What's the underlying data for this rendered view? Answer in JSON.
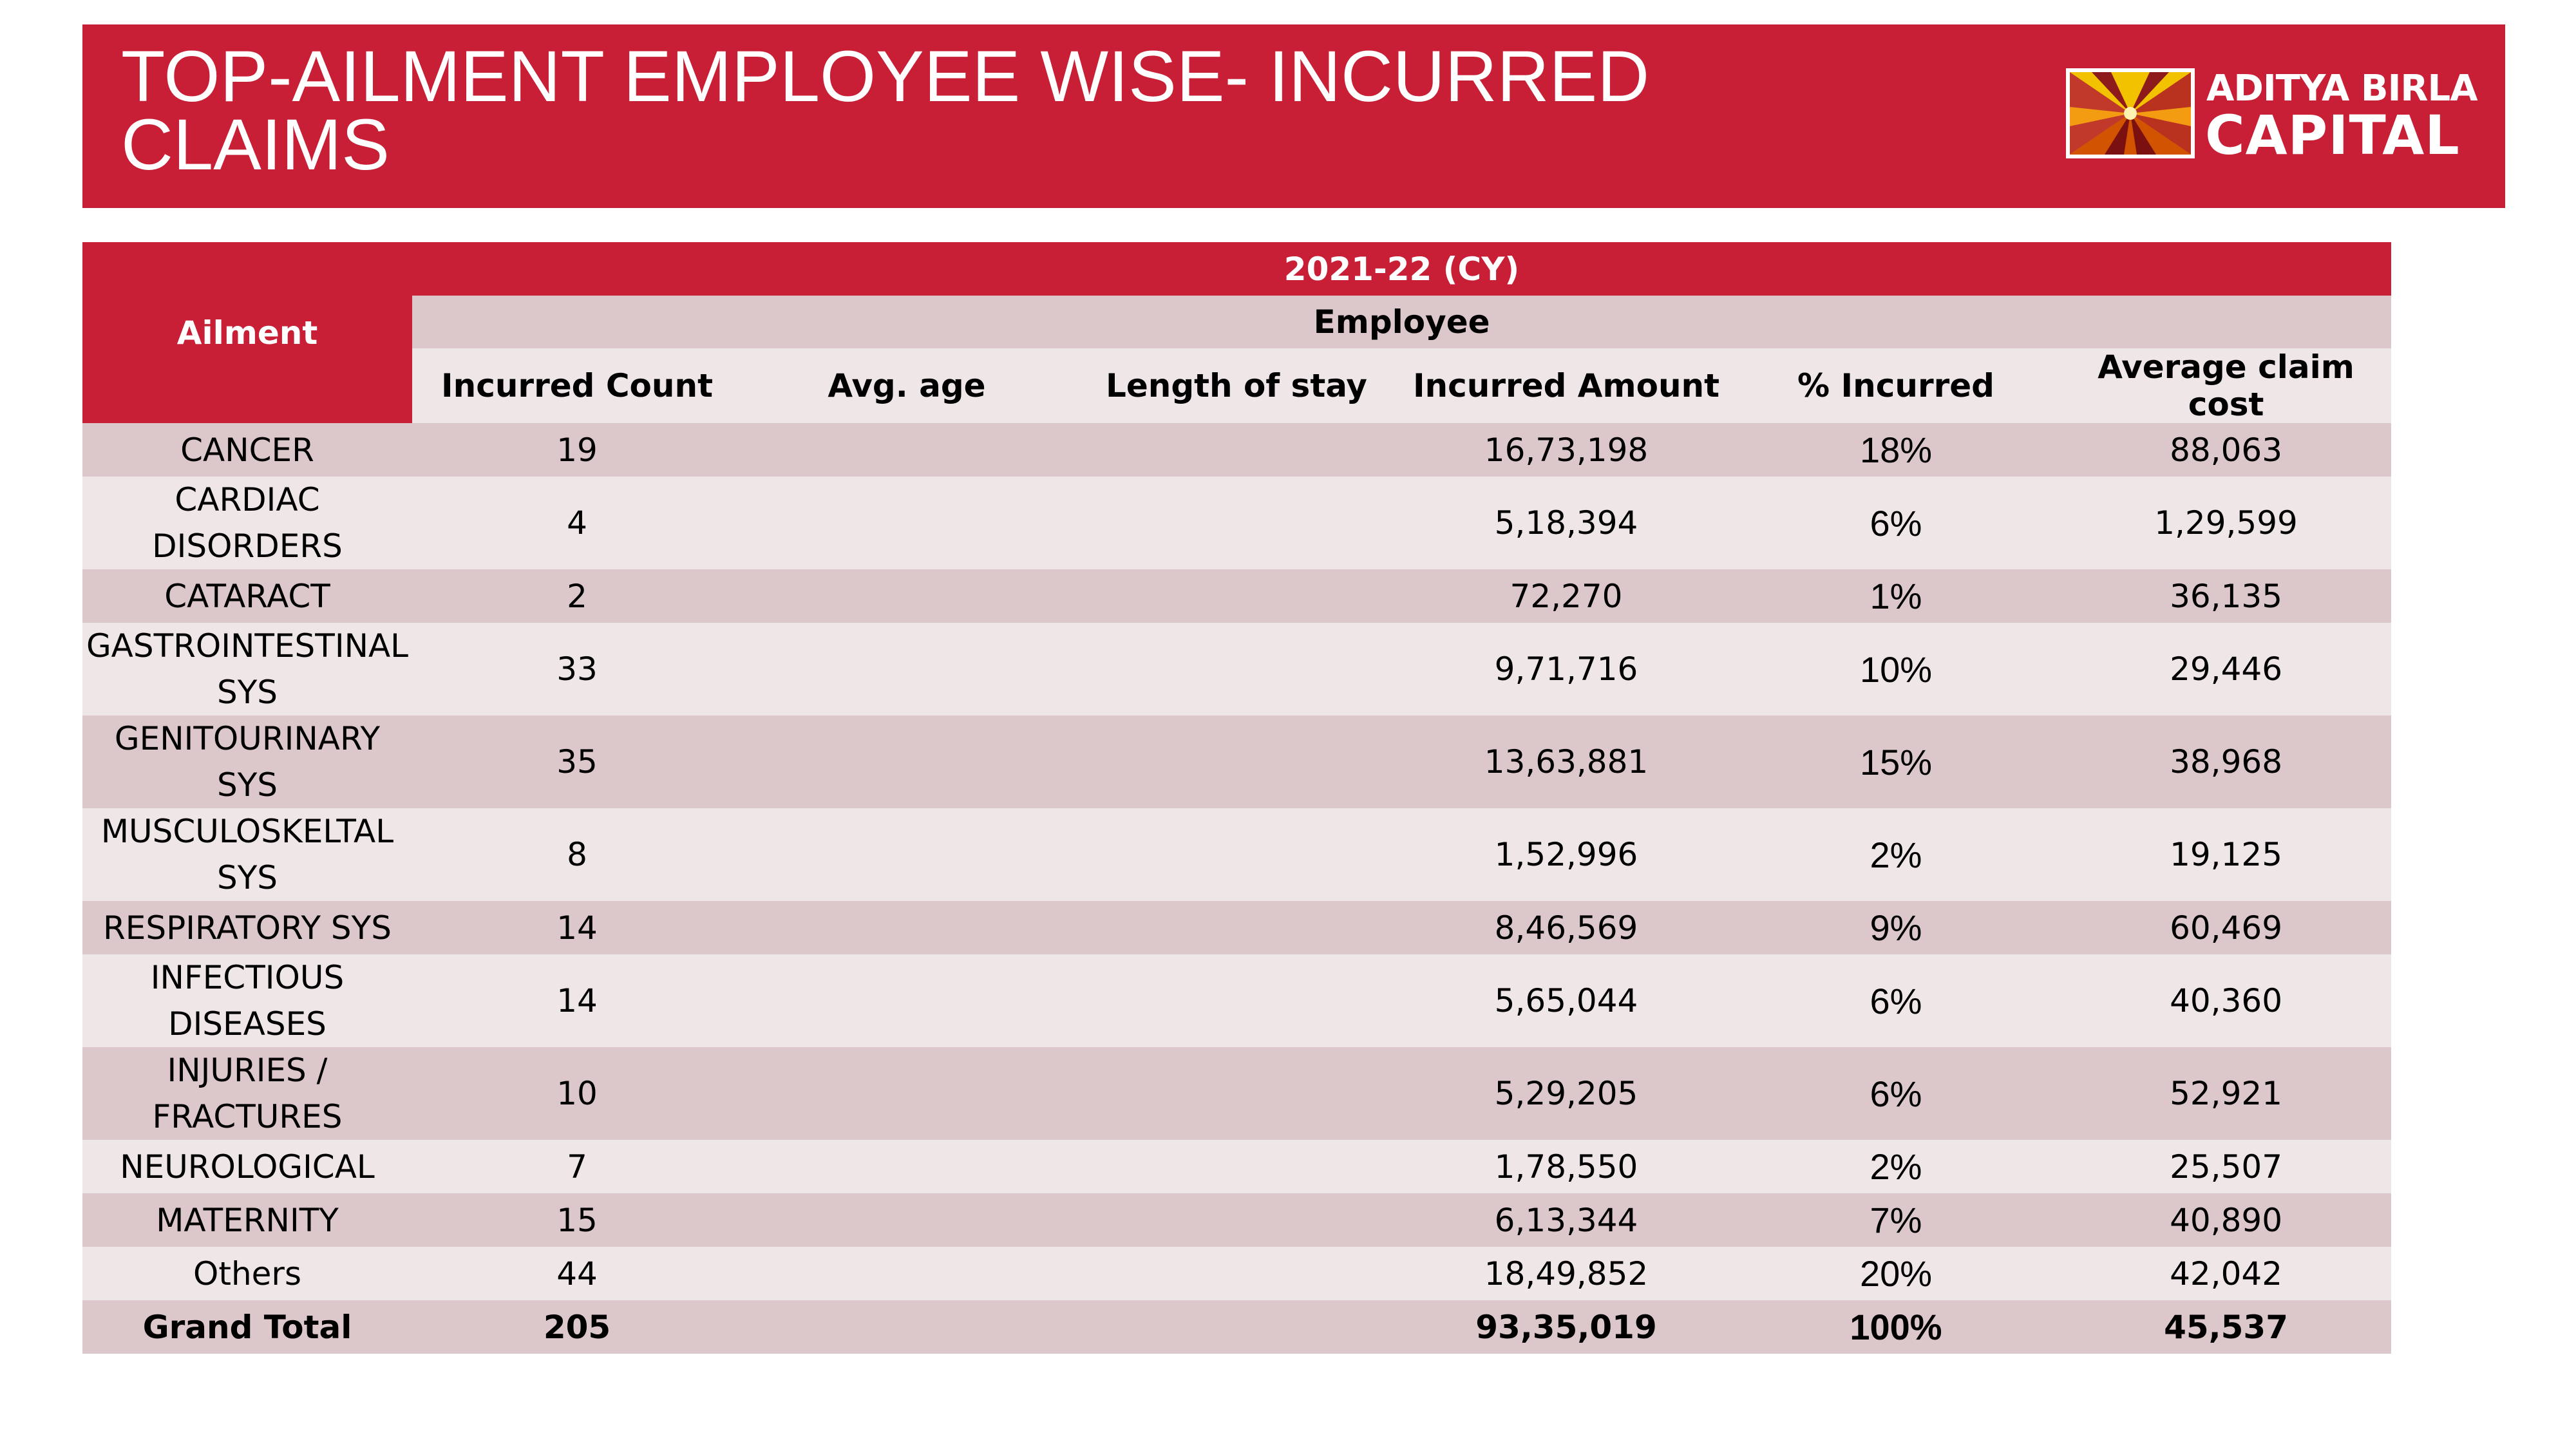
{
  "title": "TOP-AILMENT EMPLOYEE WISE- INCURRED CLAIMS",
  "logo": {
    "line1": "ADITYA BIRLA",
    "line2": "CAPITAL"
  },
  "colors": {
    "brand_red": "#c81f36",
    "row_dark": "#dcc8ca",
    "row_light": "#efe6e7"
  },
  "table": {
    "ailment_header": "Ailment",
    "period_header": "2021-22 (CY)",
    "group_header": "Employee",
    "columns": [
      "Incurred Count",
      "Avg. age",
      "Length of stay",
      "Incurred Amount",
      "% Incurred",
      "Average claim cost"
    ],
    "rows": [
      {
        "ailment": "CANCER",
        "count": "19",
        "avg_age": "",
        "stay": "",
        "amount": "16,73,198",
        "pct": "18%",
        "avg_cost": "88,063"
      },
      {
        "ailment": "CARDIAC DISORDERS",
        "count": "4",
        "avg_age": "",
        "stay": "",
        "amount": "5,18,394",
        "pct": "6%",
        "avg_cost": "1,29,599"
      },
      {
        "ailment": "CATARACT",
        "count": "2",
        "avg_age": "",
        "stay": "",
        "amount": "72,270",
        "pct": "1%",
        "avg_cost": "36,135"
      },
      {
        "ailment": "GASTROINTESTINAL SYS",
        "count": "33",
        "avg_age": "",
        "stay": "",
        "amount": "9,71,716",
        "pct": "10%",
        "avg_cost": "29,446"
      },
      {
        "ailment": "GENITOURINARY SYS",
        "count": "35",
        "avg_age": "",
        "stay": "",
        "amount": "13,63,881",
        "pct": "15%",
        "avg_cost": "38,968"
      },
      {
        "ailment": "MUSCULOSKELTAL SYS",
        "count": "8",
        "avg_age": "",
        "stay": "",
        "amount": "1,52,996",
        "pct": "2%",
        "avg_cost": "19,125"
      },
      {
        "ailment": "RESPIRATORY SYS",
        "count": "14",
        "avg_age": "",
        "stay": "",
        "amount": "8,46,569",
        "pct": "9%",
        "avg_cost": "60,469"
      },
      {
        "ailment": "INFECTIOUS DISEASES",
        "count": "14",
        "avg_age": "",
        "stay": "",
        "amount": "5,65,044",
        "pct": "6%",
        "avg_cost": "40,360"
      },
      {
        "ailment": "INJURIES / FRACTURES",
        "count": "10",
        "avg_age": "",
        "stay": "",
        "amount": "5,29,205",
        "pct": "6%",
        "avg_cost": "52,921"
      },
      {
        "ailment": "NEUROLOGICAL",
        "count": "7",
        "avg_age": "",
        "stay": "",
        "amount": "1,78,550",
        "pct": "2%",
        "avg_cost": "25,507"
      },
      {
        "ailment": "MATERNITY",
        "count": "15",
        "avg_age": "",
        "stay": "",
        "amount": "6,13,344",
        "pct": "7%",
        "avg_cost": "40,890"
      },
      {
        "ailment": "Others",
        "count": "44",
        "avg_age": "",
        "stay": "",
        "amount": "18,49,852",
        "pct": "20%",
        "avg_cost": "42,042"
      }
    ],
    "total": {
      "ailment": "Grand Total",
      "count": "205",
      "avg_age": "",
      "stay": "",
      "amount": "93,35,019",
      "pct": "100%",
      "avg_cost": "45,537"
    }
  }
}
